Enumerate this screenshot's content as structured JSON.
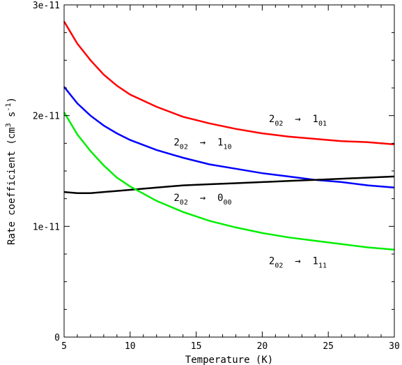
{
  "chart_data": {
    "type": "line",
    "xlabel": "Temperature (K)",
    "ylabel": "Rate coefficient (cm3 s-1)",
    "ylabel_parts": {
      "main": "Rate coefficient (cm",
      "sup1": "3",
      "mid": " s",
      "sup2": "-1",
      "end": ")"
    },
    "xlim": [
      5,
      30
    ],
    "ylim": [
      0,
      3e-11
    ],
    "xticks": [
      5,
      10,
      15,
      20,
      25,
      30
    ],
    "xtick_labels": [
      "5",
      "10",
      "15",
      "20",
      "25",
      "30"
    ],
    "yticks": [
      0,
      1e-11,
      2e-11,
      3e-11
    ],
    "ytick_labels": [
      "0",
      "1e-11",
      "2e-11",
      "3e-11"
    ],
    "grid": false,
    "x": [
      5,
      6,
      7,
      8,
      9,
      10,
      12,
      14,
      16,
      18,
      20,
      22,
      24,
      26,
      28,
      30
    ],
    "series": [
      {
        "name": "2_02 -> 1_01",
        "color": "#ff0000",
        "values": [
          2.85e-11,
          2.65e-11,
          2.5e-11,
          2.37e-11,
          2.27e-11,
          2.19e-11,
          2.08e-11,
          1.99e-11,
          1.93e-11,
          1.88e-11,
          1.84e-11,
          1.81e-11,
          1.79e-11,
          1.77e-11,
          1.76e-11,
          1.74e-11
        ]
      },
      {
        "name": "2_02 -> 1_10",
        "color": "#0000ff",
        "values": [
          2.26e-11,
          2.11e-11,
          2e-11,
          1.91e-11,
          1.84e-11,
          1.78e-11,
          1.69e-11,
          1.62e-11,
          1.56e-11,
          1.52e-11,
          1.48e-11,
          1.45e-11,
          1.42e-11,
          1.4e-11,
          1.37e-11,
          1.35e-11
        ]
      },
      {
        "name": "2_02 -> 0_00",
        "color": "#000000",
        "values": [
          1.31e-11,
          1.3e-11,
          1.3e-11,
          1.31e-11,
          1.32e-11,
          1.33e-11,
          1.35e-11,
          1.37e-11,
          1.38e-11,
          1.39e-11,
          1.4e-11,
          1.41e-11,
          1.42e-11,
          1.43e-11,
          1.44e-11,
          1.45e-11
        ]
      },
      {
        "name": "2_02 -> 1_11",
        "color": "#00ee00",
        "values": [
          2.03e-11,
          1.83e-11,
          1.68e-11,
          1.55e-11,
          1.44e-11,
          1.36e-11,
          1.23e-11,
          1.13e-11,
          1.05e-11,
          9.9e-12,
          9.4e-12,
          9e-12,
          8.7e-12,
          8.4e-12,
          8.1e-12,
          7.9e-12
        ]
      }
    ],
    "annotations": [
      {
        "main1": "2",
        "sub1": "02",
        "arrow": "→",
        "main2": "1",
        "sub2": "01",
        "x": 20.5,
        "y": 1.94e-11
      },
      {
        "main1": "2",
        "sub1": "02",
        "arrow": "→",
        "main2": "1",
        "sub2": "10",
        "x": 13.3,
        "y": 1.73e-11
      },
      {
        "main1": "2",
        "sub1": "02",
        "arrow": "→",
        "main2": "0",
        "sub2": "00",
        "x": 13.3,
        "y": 1.23e-11
      },
      {
        "main1": "2",
        "sub1": "02",
        "arrow": "→",
        "main2": "1",
        "sub2": "11",
        "x": 20.5,
        "y": 6.6e-12
      }
    ]
  }
}
